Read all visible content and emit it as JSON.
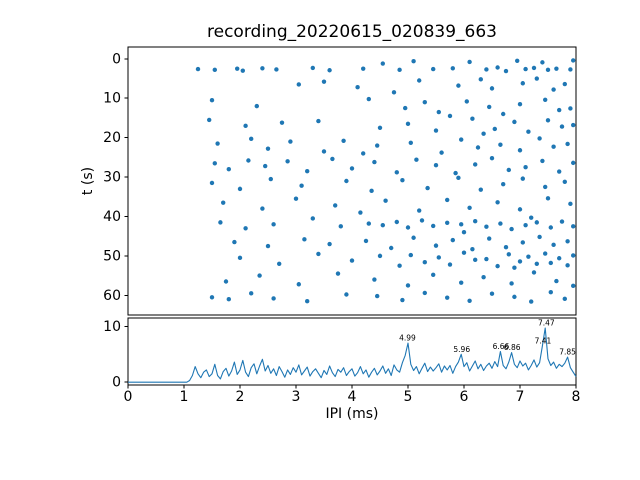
{
  "figure": {
    "title": "recording_20220615_020839_663",
    "background": "#ffffff",
    "accent_color": "#1f77b4"
  },
  "chart_data": [
    {
      "type": "scatter",
      "title": "recording_20220615_020839_663",
      "xlabel": "",
      "ylabel": "t (s)",
      "xlim": [
        0,
        8
      ],
      "ylim": [
        -3,
        65
      ],
      "y_inverted": true,
      "grid": false,
      "legend": "none",
      "marker_color": "#1f77b4",
      "yticks": [
        0,
        10,
        20,
        30,
        40,
        50,
        60
      ],
      "points": [
        [
          1.25,
          2.6
        ],
        [
          1.55,
          2.8
        ],
        [
          1.95,
          2.5
        ],
        [
          2.05,
          3.0
        ],
        [
          2.4,
          2.4
        ],
        [
          2.65,
          2.7
        ],
        [
          3.3,
          2.3
        ],
        [
          3.6,
          2.9
        ],
        [
          4.2,
          2.5
        ],
        [
          4.55,
          1.2
        ],
        [
          4.85,
          2.8
        ],
        [
          5.1,
          0.6
        ],
        [
          5.45,
          2.6
        ],
        [
          5.8,
          2.4
        ],
        [
          6.1,
          0.8
        ],
        [
          6.4,
          2.7
        ],
        [
          6.6,
          2.2
        ],
        [
          6.75,
          3.1
        ],
        [
          6.95,
          0.5
        ],
        [
          7.1,
          2.6
        ],
        [
          7.25,
          2.3
        ],
        [
          7.4,
          0.9
        ],
        [
          7.5,
          2.8
        ],
        [
          7.65,
          2.5
        ],
        [
          7.95,
          0.4
        ],
        [
          7.9,
          2.7
        ],
        [
          3.05,
          6.5
        ],
        [
          3.5,
          5.8
        ],
        [
          4.1,
          7.2
        ],
        [
          5.2,
          5.5
        ],
        [
          5.9,
          6.8
        ],
        [
          6.3,
          5.2
        ],
        [
          6.5,
          7.5
        ],
        [
          7.05,
          6.2
        ],
        [
          7.3,
          5.0
        ],
        [
          7.6,
          7.8
        ],
        [
          7.8,
          6.4
        ],
        [
          4.75,
          8.5
        ],
        [
          1.5,
          10.5
        ],
        [
          2.3,
          12.0
        ],
        [
          4.3,
          10.2
        ],
        [
          4.95,
          12.5
        ],
        [
          5.3,
          11.0
        ],
        [
          5.55,
          13.5
        ],
        [
          6.05,
          10.8
        ],
        [
          6.45,
          12.2
        ],
        [
          6.7,
          14.0
        ],
        [
          7.0,
          11.5
        ],
        [
          7.45,
          10.4
        ],
        [
          7.7,
          13.0
        ],
        [
          7.9,
          12.6
        ],
        [
          5.75,
          14.5
        ],
        [
          1.45,
          15.5
        ],
        [
          2.1,
          17.0
        ],
        [
          2.75,
          16.2
        ],
        [
          3.4,
          15.8
        ],
        [
          4.5,
          17.5
        ],
        [
          5.0,
          16.5
        ],
        [
          5.5,
          18.2
        ],
        [
          6.15,
          15.2
        ],
        [
          6.55,
          17.8
        ],
        [
          6.9,
          16.0
        ],
        [
          7.15,
          18.5
        ],
        [
          7.5,
          15.6
        ],
        [
          7.75,
          17.2
        ],
        [
          7.95,
          16.8
        ],
        [
          6.35,
          19.0
        ],
        [
          1.6,
          21.5
        ],
        [
          2.2,
          20.3
        ],
        [
          2.5,
          22.8
        ],
        [
          2.9,
          21.0
        ],
        [
          3.5,
          23.5
        ],
        [
          3.85,
          20.8
        ],
        [
          4.45,
          22.0
        ],
        [
          5.05,
          21.3
        ],
        [
          5.6,
          23.8
        ],
        [
          5.95,
          20.5
        ],
        [
          6.25,
          22.5
        ],
        [
          6.65,
          21.8
        ],
        [
          7.0,
          23.2
        ],
        [
          7.35,
          20.2
        ],
        [
          7.6,
          22.3
        ],
        [
          7.85,
          21.6
        ],
        [
          4.2,
          24.0
        ],
        [
          1.55,
          26.5
        ],
        [
          1.8,
          28.0
        ],
        [
          2.15,
          25.8
        ],
        [
          2.45,
          27.2
        ],
        [
          2.85,
          26.0
        ],
        [
          3.2,
          28.5
        ],
        [
          3.65,
          25.4
        ],
        [
          4.0,
          27.8
        ],
        [
          4.4,
          26.2
        ],
        [
          4.8,
          28.8
        ],
        [
          5.15,
          25.6
        ],
        [
          5.5,
          27.0
        ],
        [
          5.85,
          29.0
        ],
        [
          6.2,
          26.8
        ],
        [
          6.5,
          25.2
        ],
        [
          6.8,
          28.2
        ],
        [
          7.1,
          27.5
        ],
        [
          7.4,
          25.9
        ],
        [
          7.7,
          28.6
        ],
        [
          7.95,
          26.4
        ],
        [
          1.5,
          31.5
        ],
        [
          2.0,
          33.0
        ],
        [
          2.55,
          30.5
        ],
        [
          3.1,
          32.2
        ],
        [
          3.9,
          31.0
        ],
        [
          4.35,
          33.5
        ],
        [
          4.9,
          30.8
        ],
        [
          5.35,
          32.8
        ],
        [
          5.9,
          30.2
        ],
        [
          6.3,
          33.2
        ],
        [
          6.7,
          31.8
        ],
        [
          7.05,
          30.4
        ],
        [
          7.45,
          32.5
        ],
        [
          7.8,
          31.2
        ],
        [
          1.7,
          36.5
        ],
        [
          2.4,
          38.0
        ],
        [
          3.0,
          35.5
        ],
        [
          3.7,
          37.2
        ],
        [
          4.6,
          36.0
        ],
        [
          5.2,
          38.5
        ],
        [
          5.7,
          35.8
        ],
        [
          6.1,
          37.8
        ],
        [
          6.6,
          36.4
        ],
        [
          7.0,
          38.2
        ],
        [
          7.5,
          35.4
        ],
        [
          7.9,
          36.8
        ],
        [
          4.15,
          39.0
        ],
        [
          1.65,
          41.5
        ],
        [
          2.1,
          43.0
        ],
        [
          2.6,
          42.0
        ],
        [
          3.3,
          40.5
        ],
        [
          3.8,
          42.5
        ],
        [
          4.3,
          41.8
        ],
        [
          4.55,
          42.2
        ],
        [
          4.8,
          41.4
        ],
        [
          5.0,
          42.8
        ],
        [
          5.25,
          41.0
        ],
        [
          5.45,
          42.4
        ],
        [
          5.7,
          41.6
        ],
        [
          5.95,
          42.0
        ],
        [
          6.2,
          41.2
        ],
        [
          6.4,
          42.6
        ],
        [
          6.65,
          41.8
        ],
        [
          6.85,
          43.2
        ],
        [
          7.1,
          42.2
        ],
        [
          7.3,
          41.5
        ],
        [
          7.55,
          42.8
        ],
        [
          7.75,
          41.3
        ],
        [
          7.95,
          42.5
        ],
        [
          6.0,
          44.0
        ],
        [
          7.2,
          40.3
        ],
        [
          1.9,
          46.5
        ],
        [
          2.5,
          47.5
        ],
        [
          3.15,
          45.8
        ],
        [
          3.6,
          47.0
        ],
        [
          4.25,
          46.2
        ],
        [
          4.7,
          48.0
        ],
        [
          5.1,
          45.4
        ],
        [
          5.5,
          47.4
        ],
        [
          5.8,
          46.0
        ],
        [
          6.15,
          48.3
        ],
        [
          6.45,
          45.6
        ],
        [
          6.75,
          47.8
        ],
        [
          7.05,
          46.6
        ],
        [
          7.35,
          45.2
        ],
        [
          7.6,
          47.2
        ],
        [
          7.85,
          46.3
        ],
        [
          2.0,
          50.5
        ],
        [
          2.7,
          52.0
        ],
        [
          3.4,
          49.5
        ],
        [
          4.0,
          51.2
        ],
        [
          4.5,
          50.0
        ],
        [
          4.85,
          52.5
        ],
        [
          5.05,
          49.8
        ],
        [
          5.3,
          51.6
        ],
        [
          5.55,
          50.4
        ],
        [
          5.75,
          52.2
        ],
        [
          6.0,
          49.2
        ],
        [
          6.2,
          51.0
        ],
        [
          6.4,
          50.8
        ],
        [
          6.6,
          52.6
        ],
        [
          6.8,
          49.6
        ],
        [
          7.0,
          51.4
        ],
        [
          7.15,
          50.2
        ],
        [
          7.3,
          52.0
        ],
        [
          7.45,
          49.4
        ],
        [
          7.55,
          51.8
        ],
        [
          7.7,
          50.6
        ],
        [
          7.85,
          52.4
        ],
        [
          7.95,
          49.9
        ],
        [
          6.9,
          53.0
        ],
        [
          1.75,
          56.5
        ],
        [
          2.35,
          55.0
        ],
        [
          3.05,
          57.2
        ],
        [
          3.75,
          54.5
        ],
        [
          4.4,
          56.0
        ],
        [
          5.0,
          57.5
        ],
        [
          5.45,
          54.8
        ],
        [
          5.95,
          56.8
        ],
        [
          6.35,
          55.4
        ],
        [
          6.85,
          57.0
        ],
        [
          7.25,
          54.2
        ],
        [
          7.65,
          56.4
        ],
        [
          7.95,
          57.6
        ],
        [
          1.5,
          60.5
        ],
        [
          1.8,
          61.0
        ],
        [
          2.2,
          59.5
        ],
        [
          2.6,
          60.8
        ],
        [
          3.2,
          61.5
        ],
        [
          3.9,
          59.8
        ],
        [
          4.45,
          60.2
        ],
        [
          4.9,
          61.2
        ],
        [
          5.3,
          59.4
        ],
        [
          5.7,
          60.6
        ],
        [
          6.1,
          61.4
        ],
        [
          6.5,
          59.6
        ],
        [
          6.9,
          60.4
        ],
        [
          7.2,
          61.6
        ],
        [
          7.55,
          59.2
        ],
        [
          7.8,
          60.9
        ]
      ]
    },
    {
      "type": "line",
      "title": "",
      "xlabel": "IPI (ms)",
      "ylabel": "",
      "xlim": [
        0,
        8
      ],
      "ylim": [
        -0.5,
        11.5
      ],
      "grid": false,
      "legend": "none",
      "color": "#1f77b4",
      "xticks": [
        0,
        1,
        2,
        3,
        4,
        5,
        6,
        7,
        8
      ],
      "yticks": [
        0,
        10
      ],
      "x_start": 0,
      "x_step": 0.05,
      "values": [
        0,
        0,
        0,
        0,
        0,
        0,
        0,
        0,
        0,
        0,
        0,
        0,
        0,
        0,
        0,
        0,
        0,
        0,
        0,
        0,
        0,
        0,
        0.3,
        1.2,
        2.8,
        1.5,
        0.8,
        1.8,
        2.2,
        1.0,
        1.5,
        3.2,
        1.2,
        0.6,
        1.9,
        2.5,
        1.1,
        2.0,
        3.6,
        1.4,
        2.2,
        3.9,
        1.8,
        1.0,
        2.6,
        3.3,
        1.5,
        2.9,
        4.1,
        2.0,
        3.0,
        1.6,
        2.4,
        1.2,
        2.8,
        1.9,
        0.9,
        2.2,
        1.4,
        2.6,
        1.8,
        3.1,
        1.3,
        2.0,
        2.7,
        1.1,
        1.9,
        2.4,
        1.6,
        0.8,
        2.1,
        1.4,
        2.9,
        1.7,
        1.0,
        2.3,
        1.8,
        2.6,
        1.2,
        1.9,
        2.4,
        1.1,
        1.7,
        2.8,
        1.5,
        2.2,
        0.9,
        1.8,
        2.5,
        1.3,
        2.0,
        2.9,
        1.6,
        2.4,
        1.2,
        3.1,
        2.2,
        1.8,
        3.5,
        4.8,
        7.0,
        3.2,
        2.1,
        2.8,
        1.5,
        2.5,
        3.4,
        1.9,
        2.7,
        2.0,
        2.6,
        3.3,
        1.8,
        2.9,
        2.2,
        3.0,
        1.6,
        2.8,
        3.6,
        5.0,
        2.8,
        3.5,
        2.0,
        2.9,
        3.8,
        2.4,
        3.2,
        2.1,
        2.9,
        3.4,
        2.5,
        3.7,
        2.8,
        5.5,
        3.0,
        2.4,
        3.6,
        5.3,
        3.2,
        2.6,
        3.8,
        2.9,
        3.4,
        2.2,
        3.0,
        4.0,
        2.7,
        3.5,
        6.5,
        9.7,
        4.2,
        3.0,
        3.6,
        2.5,
        3.2,
        2.8,
        3.4,
        4.5,
        2.6,
        1.8,
        1.0
      ],
      "annotations": [
        {
          "label": "4.99",
          "x": 4.99,
          "y": 7.0
        },
        {
          "label": "5.96",
          "x": 5.96,
          "y": 5.0
        },
        {
          "label": "6.66",
          "x": 6.66,
          "y": 5.5
        },
        {
          "label": "6.86",
          "x": 6.86,
          "y": 5.3
        },
        {
          "label": "7.41",
          "x": 7.41,
          "y": 6.5
        },
        {
          "label": "7.47",
          "x": 7.47,
          "y": 9.7
        },
        {
          "label": "7.85",
          "x": 7.85,
          "y": 4.5
        }
      ]
    }
  ]
}
